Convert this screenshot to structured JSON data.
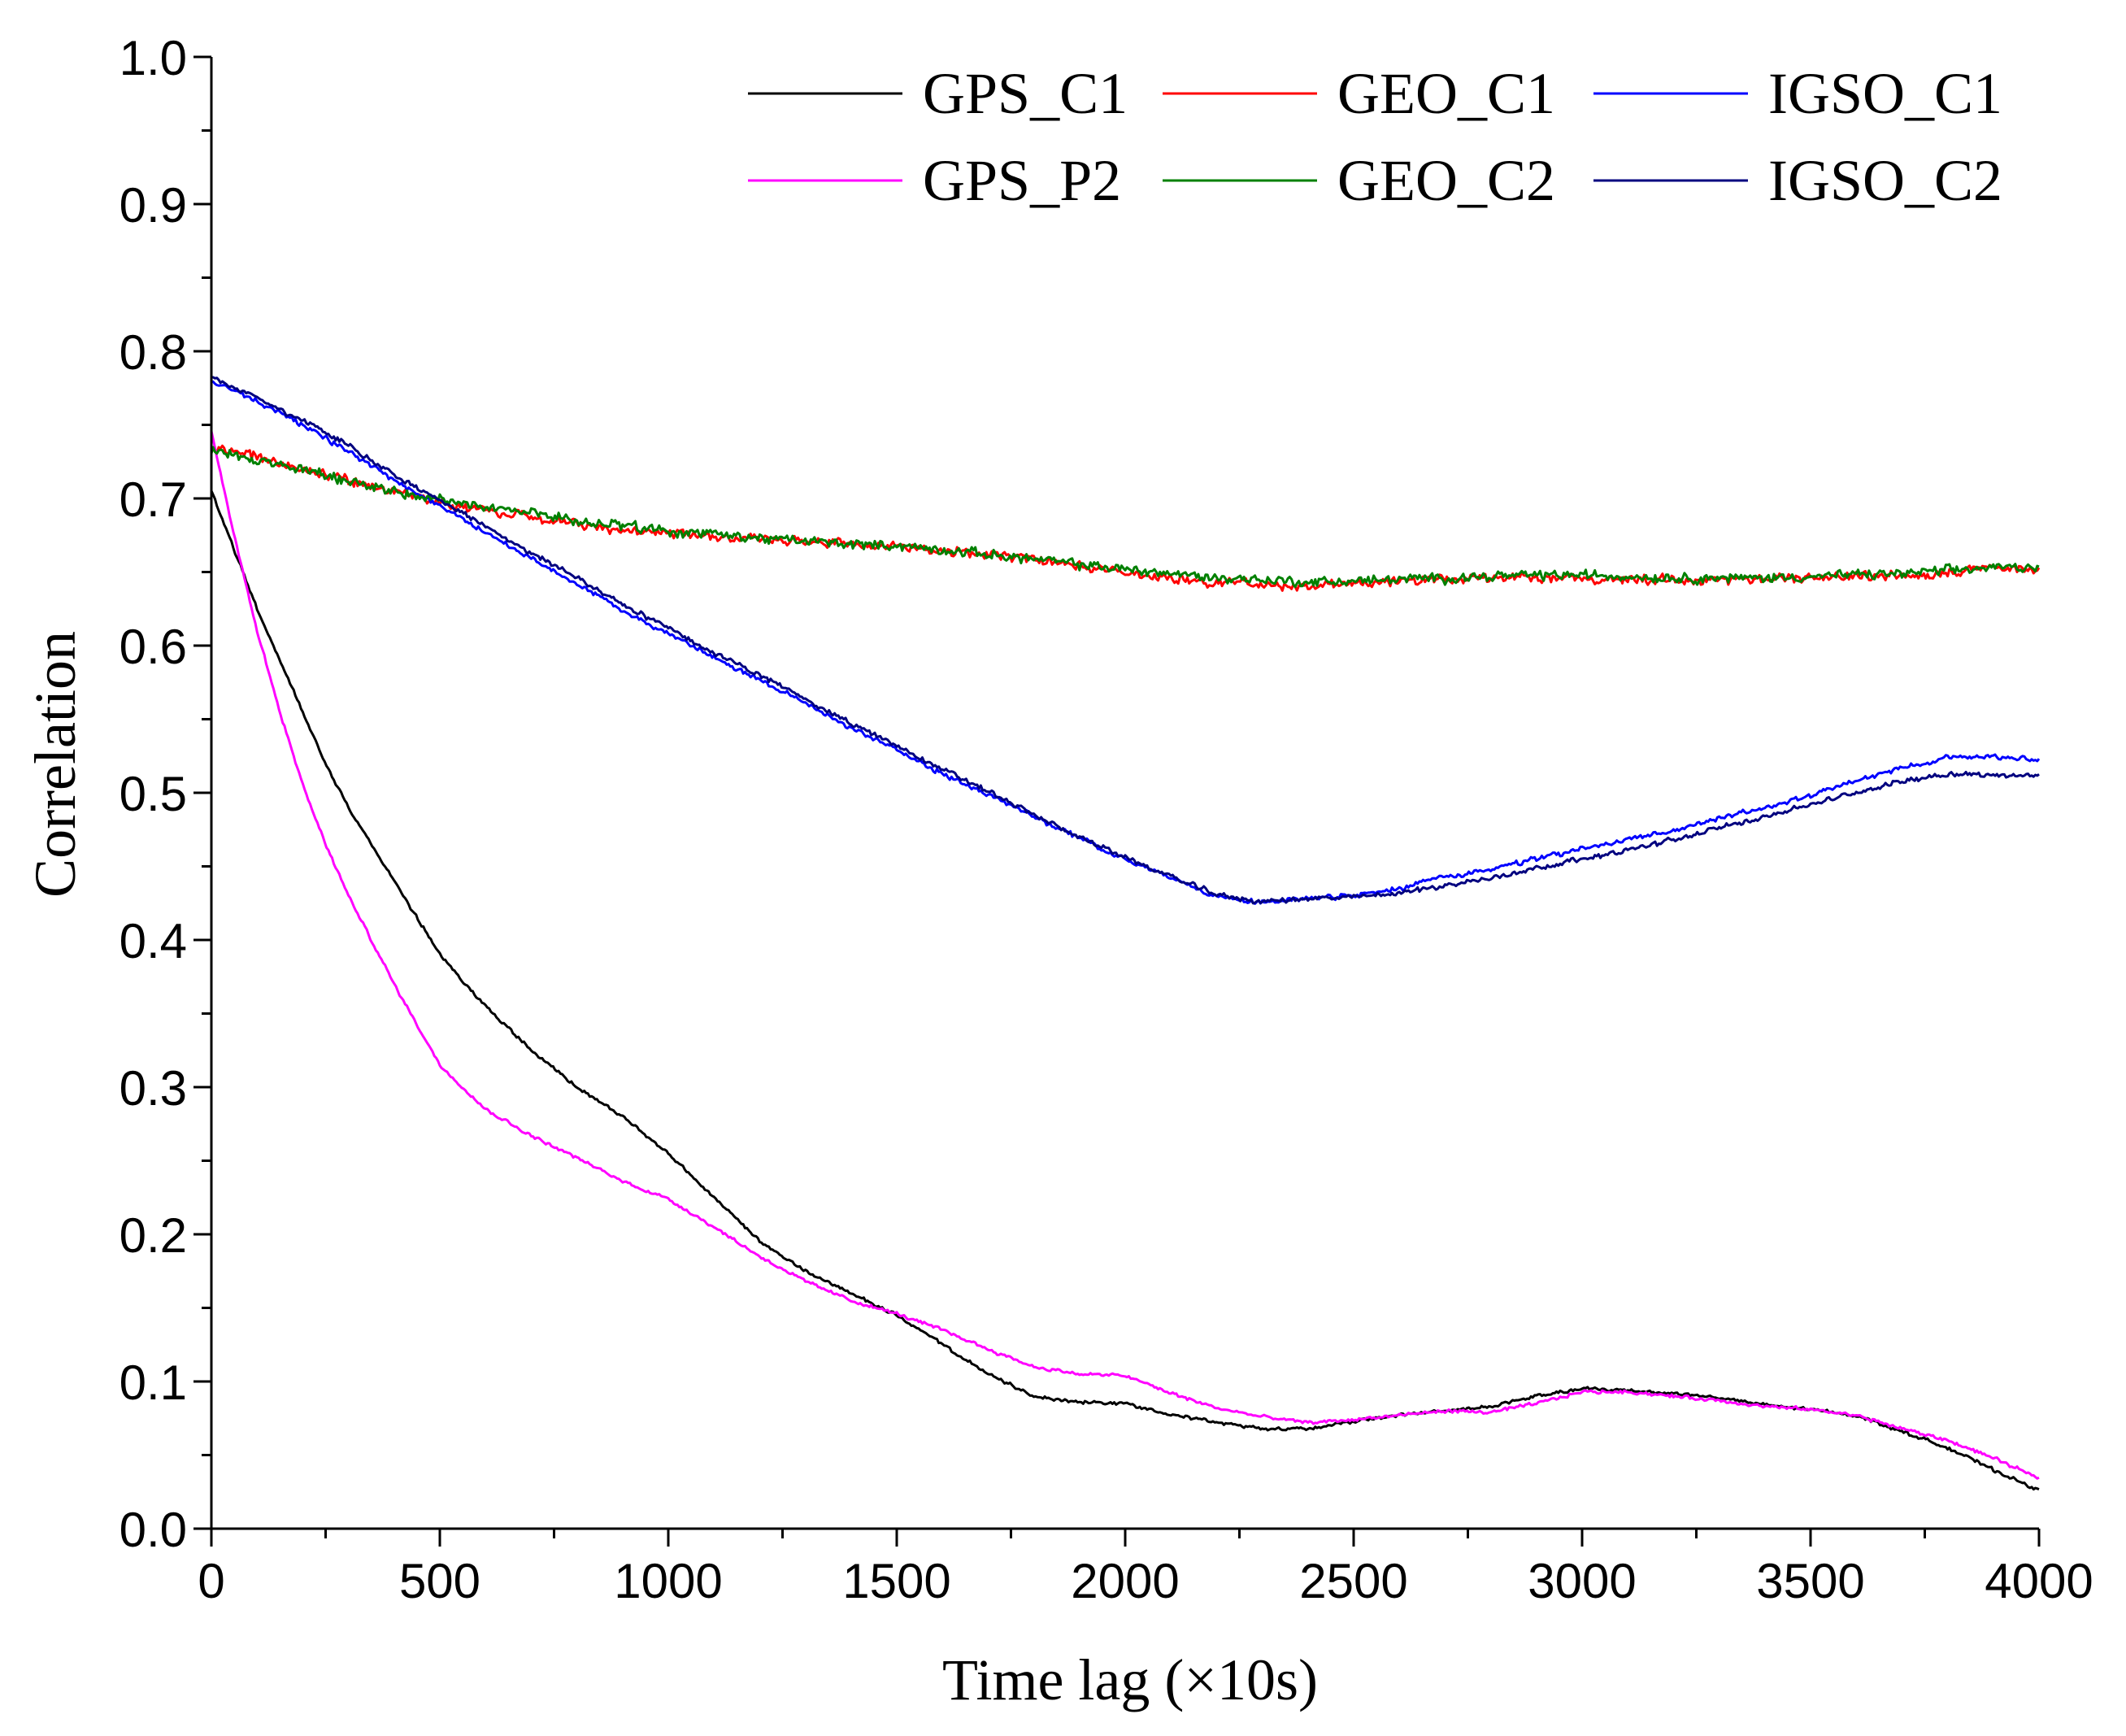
{
  "chart_data": {
    "type": "line",
    "title": "",
    "xlabel": "Time lag (×10s)",
    "ylabel": "Correlation",
    "xlim": [
      0,
      4000
    ],
    "ylim": [
      0.0,
      1.0
    ],
    "x_ticks": [
      0,
      500,
      1000,
      1500,
      2000,
      2500,
      3000,
      3500,
      4000
    ],
    "x_tick_labels": [
      "0",
      "500",
      "1000",
      "1500",
      "2000",
      "2500",
      "3000",
      "3500",
      "4000"
    ],
    "y_ticks": [
      0.0,
      0.1,
      0.2,
      0.3,
      0.4,
      0.5,
      0.6,
      0.7,
      0.8,
      0.9,
      1.0
    ],
    "y_tick_labels": [
      "0.0",
      "0.1",
      "0.2",
      "0.3",
      "0.4",
      "0.5",
      "0.6",
      "0.7",
      "0.8",
      "0.9",
      "1.0"
    ],
    "grid": false,
    "legend_position": "top-right",
    "series": [
      {
        "name": "GPS_C1",
        "color": "#000000",
        "noise": 0.0012,
        "points": [
          [
            0,
            0.705
          ],
          [
            50,
            0.665
          ],
          [
            100,
            0.625
          ],
          [
            150,
            0.59
          ],
          [
            200,
            0.555
          ],
          [
            250,
            0.52
          ],
          [
            300,
            0.49
          ],
          [
            400,
            0.44
          ],
          [
            500,
            0.39
          ],
          [
            600,
            0.355
          ],
          [
            700,
            0.325
          ],
          [
            800,
            0.3
          ],
          [
            900,
            0.28
          ],
          [
            1000,
            0.255
          ],
          [
            1100,
            0.225
          ],
          [
            1200,
            0.195
          ],
          [
            1300,
            0.175
          ],
          [
            1400,
            0.16
          ],
          [
            1500,
            0.145
          ],
          [
            1600,
            0.125
          ],
          [
            1700,
            0.105
          ],
          [
            1800,
            0.09
          ],
          [
            1900,
            0.086
          ],
          [
            2000,
            0.085
          ],
          [
            2100,
            0.078
          ],
          [
            2200,
            0.072
          ],
          [
            2300,
            0.068
          ],
          [
            2400,
            0.068
          ],
          [
            2500,
            0.073
          ],
          [
            2600,
            0.077
          ],
          [
            2700,
            0.08
          ],
          [
            2800,
            0.083
          ],
          [
            2900,
            0.09
          ],
          [
            3000,
            0.095
          ],
          [
            3100,
            0.094
          ],
          [
            3200,
            0.092
          ],
          [
            3300,
            0.089
          ],
          [
            3400,
            0.084
          ],
          [
            3500,
            0.081
          ],
          [
            3600,
            0.077
          ],
          [
            3700,
            0.066
          ],
          [
            3800,
            0.055
          ],
          [
            3900,
            0.04
          ],
          [
            4000,
            0.026
          ]
        ]
      },
      {
        "name": "GEO_C1",
        "color": "#ff0000",
        "noise": 0.0035,
        "points": [
          [
            0,
            0.735
          ],
          [
            100,
            0.728
          ],
          [
            200,
            0.72
          ],
          [
            300,
            0.712
          ],
          [
            400,
            0.705
          ],
          [
            500,
            0.697
          ],
          [
            600,
            0.692
          ],
          [
            700,
            0.687
          ],
          [
            800,
            0.683
          ],
          [
            900,
            0.678
          ],
          [
            1000,
            0.677
          ],
          [
            1100,
            0.674
          ],
          [
            1200,
            0.672
          ],
          [
            1300,
            0.671
          ],
          [
            1400,
            0.669
          ],
          [
            1500,
            0.668
          ],
          [
            1600,
            0.665
          ],
          [
            1700,
            0.662
          ],
          [
            1800,
            0.658
          ],
          [
            1900,
            0.654
          ],
          [
            2000,
            0.65
          ],
          [
            2100,
            0.646
          ],
          [
            2200,
            0.643
          ],
          [
            2300,
            0.642
          ],
          [
            2400,
            0.64
          ],
          [
            2500,
            0.642
          ],
          [
            2600,
            0.644
          ],
          [
            2700,
            0.645
          ],
          [
            2800,
            0.646
          ],
          [
            2900,
            0.647
          ],
          [
            3000,
            0.646
          ],
          [
            3100,
            0.645
          ],
          [
            3200,
            0.645
          ],
          [
            3300,
            0.645
          ],
          [
            3400,
            0.645
          ],
          [
            3500,
            0.646
          ],
          [
            3600,
            0.647
          ],
          [
            3700,
            0.648
          ],
          [
            3800,
            0.65
          ],
          [
            3900,
            0.652
          ],
          [
            4000,
            0.652
          ]
        ]
      },
      {
        "name": "IGSO_C1",
        "color": "#0000ff",
        "noise": 0.0018,
        "points": [
          [
            0,
            0.78
          ],
          [
            100,
            0.766
          ],
          [
            200,
            0.75
          ],
          [
            300,
            0.732
          ],
          [
            400,
            0.712
          ],
          [
            500,
            0.695
          ],
          [
            600,
            0.677
          ],
          [
            700,
            0.659
          ],
          [
            800,
            0.642
          ],
          [
            900,
            0.624
          ],
          [
            1000,
            0.608
          ],
          [
            1100,
            0.592
          ],
          [
            1200,
            0.577
          ],
          [
            1300,
            0.561
          ],
          [
            1400,
            0.544
          ],
          [
            1500,
            0.529
          ],
          [
            1600,
            0.513
          ],
          [
            1700,
            0.499
          ],
          [
            1800,
            0.484
          ],
          [
            1900,
            0.469
          ],
          [
            2000,
            0.455
          ],
          [
            2100,
            0.442
          ],
          [
            2200,
            0.43
          ],
          [
            2250,
            0.427
          ],
          [
            2300,
            0.426
          ],
          [
            2400,
            0.428
          ],
          [
            2500,
            0.43
          ],
          [
            2600,
            0.435
          ],
          [
            2700,
            0.443
          ],
          [
            2800,
            0.448
          ],
          [
            2900,
            0.455
          ],
          [
            3000,
            0.462
          ],
          [
            3100,
            0.468
          ],
          [
            3200,
            0.474
          ],
          [
            3300,
            0.483
          ],
          [
            3400,
            0.49
          ],
          [
            3500,
            0.498
          ],
          [
            3600,
            0.508
          ],
          [
            3700,
            0.517
          ],
          [
            3800,
            0.524
          ],
          [
            3900,
            0.525
          ],
          [
            4000,
            0.523
          ]
        ]
      },
      {
        "name": "GPS_P2",
        "color": "#ff00ff",
        "noise": 0.0012,
        "points": [
          [
            0,
            0.745
          ],
          [
            25,
            0.71
          ],
          [
            50,
            0.675
          ],
          [
            100,
            0.61
          ],
          [
            150,
            0.555
          ],
          [
            200,
            0.505
          ],
          [
            250,
            0.465
          ],
          [
            300,
            0.43
          ],
          [
            400,
            0.37
          ],
          [
            500,
            0.315
          ],
          [
            600,
            0.285
          ],
          [
            700,
            0.267
          ],
          [
            800,
            0.252
          ],
          [
            900,
            0.236
          ],
          [
            1000,
            0.224
          ],
          [
            1100,
            0.205
          ],
          [
            1200,
            0.185
          ],
          [
            1300,
            0.168
          ],
          [
            1400,
            0.155
          ],
          [
            1500,
            0.146
          ],
          [
            1600,
            0.135
          ],
          [
            1700,
            0.122
          ],
          [
            1800,
            0.11
          ],
          [
            1900,
            0.105
          ],
          [
            2000,
            0.104
          ],
          [
            2100,
            0.092
          ],
          [
            2200,
            0.082
          ],
          [
            2300,
            0.076
          ],
          [
            2400,
            0.072
          ],
          [
            2500,
            0.074
          ],
          [
            2600,
            0.077
          ],
          [
            2700,
            0.08
          ],
          [
            2800,
            0.079
          ],
          [
            2900,
            0.085
          ],
          [
            3000,
            0.093
          ],
          [
            3100,
            0.093
          ],
          [
            3200,
            0.09
          ],
          [
            3300,
            0.087
          ],
          [
            3400,
            0.083
          ],
          [
            3500,
            0.081
          ],
          [
            3600,
            0.077
          ],
          [
            3700,
            0.068
          ],
          [
            3800,
            0.06
          ],
          [
            3900,
            0.048
          ],
          [
            4000,
            0.034
          ]
        ]
      },
      {
        "name": "GEO_C2",
        "color": "#008000",
        "noise": 0.0035,
        "points": [
          [
            0,
            0.733
          ],
          [
            100,
            0.726
          ],
          [
            200,
            0.719
          ],
          [
            300,
            0.712
          ],
          [
            400,
            0.705
          ],
          [
            500,
            0.699
          ],
          [
            600,
            0.694
          ],
          [
            700,
            0.69
          ],
          [
            800,
            0.685
          ],
          [
            900,
            0.681
          ],
          [
            1000,
            0.678
          ],
          [
            1100,
            0.675
          ],
          [
            1200,
            0.673
          ],
          [
            1300,
            0.671
          ],
          [
            1400,
            0.669
          ],
          [
            1500,
            0.668
          ],
          [
            1600,
            0.665
          ],
          [
            1700,
            0.662
          ],
          [
            1800,
            0.659
          ],
          [
            1900,
            0.655
          ],
          [
            2000,
            0.652
          ],
          [
            2100,
            0.649
          ],
          [
            2200,
            0.646
          ],
          [
            2300,
            0.645
          ],
          [
            2400,
            0.643
          ],
          [
            2500,
            0.644
          ],
          [
            2600,
            0.645
          ],
          [
            2700,
            0.646
          ],
          [
            2800,
            0.647
          ],
          [
            2900,
            0.648
          ],
          [
            3000,
            0.648
          ],
          [
            3100,
            0.647
          ],
          [
            3200,
            0.646
          ],
          [
            3300,
            0.646
          ],
          [
            3400,
            0.646
          ],
          [
            3500,
            0.647
          ],
          [
            3600,
            0.648
          ],
          [
            3700,
            0.649
          ],
          [
            3800,
            0.651
          ],
          [
            3900,
            0.653
          ],
          [
            4000,
            0.654
          ]
        ]
      },
      {
        "name": "IGSO_C2",
        "color": "#00007f",
        "noise": 0.0018,
        "points": [
          [
            0,
            0.782
          ],
          [
            100,
            0.768
          ],
          [
            200,
            0.753
          ],
          [
            300,
            0.736
          ],
          [
            400,
            0.716
          ],
          [
            500,
            0.699
          ],
          [
            600,
            0.681
          ],
          [
            700,
            0.663
          ],
          [
            800,
            0.646
          ],
          [
            900,
            0.628
          ],
          [
            1000,
            0.612
          ],
          [
            1100,
            0.595
          ],
          [
            1200,
            0.58
          ],
          [
            1300,
            0.564
          ],
          [
            1400,
            0.547
          ],
          [
            1500,
            0.532
          ],
          [
            1600,
            0.516
          ],
          [
            1700,
            0.501
          ],
          [
            1800,
            0.485
          ],
          [
            1900,
            0.47
          ],
          [
            2000,
            0.456
          ],
          [
            2100,
            0.443
          ],
          [
            2200,
            0.431
          ],
          [
            2250,
            0.428
          ],
          [
            2300,
            0.426
          ],
          [
            2400,
            0.428
          ],
          [
            2500,
            0.429
          ],
          [
            2600,
            0.432
          ],
          [
            2700,
            0.437
          ],
          [
            2800,
            0.442
          ],
          [
            2900,
            0.449
          ],
          [
            3000,
            0.455
          ],
          [
            3100,
            0.461
          ],
          [
            3200,
            0.468
          ],
          [
            3300,
            0.476
          ],
          [
            3400,
            0.484
          ],
          [
            3500,
            0.492
          ],
          [
            3600,
            0.5
          ],
          [
            3700,
            0.508
          ],
          [
            3800,
            0.513
          ],
          [
            3900,
            0.512
          ],
          [
            4000,
            0.512
          ]
        ]
      }
    ]
  }
}
